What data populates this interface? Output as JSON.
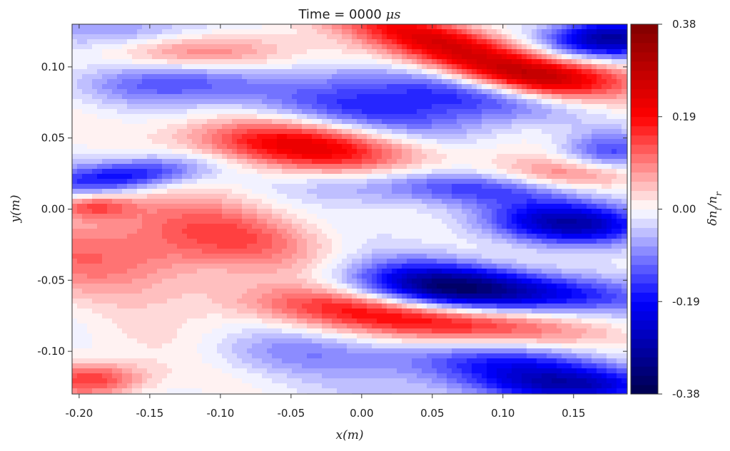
{
  "chart_data": {
    "type": "heatmap",
    "title": "Time = 0000",
    "title_unit": "μs",
    "xlabel": "x(m)",
    "ylabel": "y(m)",
    "colorbar_label": "δn_i/n_r",
    "colorbar_label_main": "δn",
    "colorbar_label_sub1": "i",
    "colorbar_label_mid": "/n",
    "colorbar_label_sub2": "r",
    "colormap": "seismic",
    "xlim": [
      -0.205,
      0.188
    ],
    "ylim": [
      -0.13,
      0.13
    ],
    "zlim": [
      -0.38,
      0.38
    ],
    "contour_levels": 40,
    "x_ticks": [
      {
        "value": -0.2,
        "label": "-0.20"
      },
      {
        "value": -0.15,
        "label": "-0.15"
      },
      {
        "value": -0.1,
        "label": "-0.10"
      },
      {
        "value": -0.05,
        "label": "-0.05"
      },
      {
        "value": 0.0,
        "label": "0.00"
      },
      {
        "value": 0.05,
        "label": "0.05"
      },
      {
        "value": 0.1,
        "label": "0.10"
      },
      {
        "value": 0.15,
        "label": "0.15"
      }
    ],
    "y_ticks": [
      {
        "value": 0.1,
        "label": "0.10"
      },
      {
        "value": 0.05,
        "label": "0.05"
      },
      {
        "value": 0.0,
        "label": "0.00"
      },
      {
        "value": -0.05,
        "label": "-0.05"
      },
      {
        "value": -0.1,
        "label": "-0.10"
      }
    ],
    "colorbar_ticks": [
      {
        "value": 0.38,
        "label": "0.38"
      },
      {
        "value": 0.19,
        "label": "0.19"
      },
      {
        "value": 0.0,
        "label": "0.00"
      },
      {
        "value": -0.19,
        "label": "-0.19"
      },
      {
        "value": -0.38,
        "label": "-0.38"
      }
    ],
    "features": [
      {
        "x": -0.05,
        "y": 0.045,
        "amplitude": 0.22,
        "sx": 0.055,
        "sy": 0.012,
        "tilt": -0.08
      },
      {
        "x": 0.08,
        "y": 0.105,
        "amplitude": 0.2,
        "sx": 0.05,
        "sy": 0.01,
        "tilt": -0.25
      },
      {
        "x": 0.14,
        "y": 0.093,
        "amplitude": 0.2,
        "sx": 0.04,
        "sy": 0.01,
        "tilt": -0.05
      },
      {
        "x": 0.055,
        "y": 0.123,
        "amplitude": 0.12,
        "sx": 0.05,
        "sy": 0.008,
        "tilt": -0.2
      },
      {
        "x": 0.06,
        "y": -0.055,
        "amplitude": -0.32,
        "sx": 0.045,
        "sy": 0.012,
        "tilt": -0.05
      },
      {
        "x": 0.14,
        "y": -0.06,
        "amplitude": -0.18,
        "sx": 0.05,
        "sy": 0.01,
        "tilt": -0.05
      },
      {
        "x": 0.15,
        "y": -0.01,
        "amplitude": -0.26,
        "sx": 0.04,
        "sy": 0.01,
        "tilt": -0.03
      },
      {
        "x": 0.07,
        "y": -0.08,
        "amplitude": 0.18,
        "sx": 0.06,
        "sy": 0.01,
        "tilt": -0.08
      },
      {
        "x": -0.02,
        "y": -0.068,
        "amplitude": 0.1,
        "sx": 0.06,
        "sy": 0.01,
        "tilt": -0.05
      },
      {
        "x": -0.17,
        "y": -0.035,
        "amplitude": 0.12,
        "sx": 0.06,
        "sy": 0.02,
        "tilt": 0.0
      },
      {
        "x": -0.08,
        "y": -0.02,
        "amplitude": 0.1,
        "sx": 0.05,
        "sy": 0.015,
        "tilt": -0.15
      },
      {
        "x": -0.17,
        "y": 0.023,
        "amplitude": -0.2,
        "sx": 0.04,
        "sy": 0.008,
        "tilt": 0.1
      },
      {
        "x": -0.13,
        "y": 0.09,
        "amplitude": -0.12,
        "sx": 0.05,
        "sy": 0.01,
        "tilt": 0.05
      },
      {
        "x": 0.0,
        "y": 0.07,
        "amplitude": -0.13,
        "sx": 0.07,
        "sy": 0.012,
        "tilt": -0.12
      },
      {
        "x": 0.075,
        "y": 0.08,
        "amplitude": -0.14,
        "sx": 0.05,
        "sy": 0.01,
        "tilt": -0.15
      },
      {
        "x": -0.16,
        "y": 0.125,
        "amplitude": -0.1,
        "sx": 0.04,
        "sy": 0.008,
        "tilt": 0.0
      },
      {
        "x": 0.175,
        "y": 0.12,
        "amplitude": -0.3,
        "sx": 0.03,
        "sy": 0.01,
        "tilt": 0.0
      },
      {
        "x": 0.175,
        "y": 0.04,
        "amplitude": -0.15,
        "sx": 0.025,
        "sy": 0.01,
        "tilt": 0.0
      },
      {
        "x": 0.08,
        "y": 0.015,
        "amplitude": -0.12,
        "sx": 0.05,
        "sy": 0.008,
        "tilt": -0.05
      },
      {
        "x": 0.1,
        "y": -0.11,
        "amplitude": -0.16,
        "sx": 0.06,
        "sy": 0.01,
        "tilt": -0.05
      },
      {
        "x": 0.15,
        "y": -0.125,
        "amplitude": -0.2,
        "sx": 0.05,
        "sy": 0.008,
        "tilt": 0.0
      },
      {
        "x": -0.19,
        "y": -0.12,
        "amplitude": 0.15,
        "sx": 0.025,
        "sy": 0.008,
        "tilt": 0.0
      },
      {
        "x": -0.19,
        "y": 0.002,
        "amplitude": 0.12,
        "sx": 0.02,
        "sy": 0.006,
        "tilt": 0.0
      },
      {
        "x": 0.15,
        "y": 0.025,
        "amplitude": 0.1,
        "sx": 0.04,
        "sy": 0.008,
        "tilt": 0.0
      },
      {
        "x": -0.05,
        "y": -0.1,
        "amplitude": -0.08,
        "sx": 0.05,
        "sy": 0.012,
        "tilt": 0.0
      },
      {
        "x": 0.0,
        "y": 0.015,
        "amplitude": -0.07,
        "sx": 0.05,
        "sy": 0.01,
        "tilt": -0.05
      },
      {
        "x": -0.1,
        "y": 0.11,
        "amplitude": 0.08,
        "sx": 0.05,
        "sy": 0.01,
        "tilt": -0.05
      }
    ]
  }
}
